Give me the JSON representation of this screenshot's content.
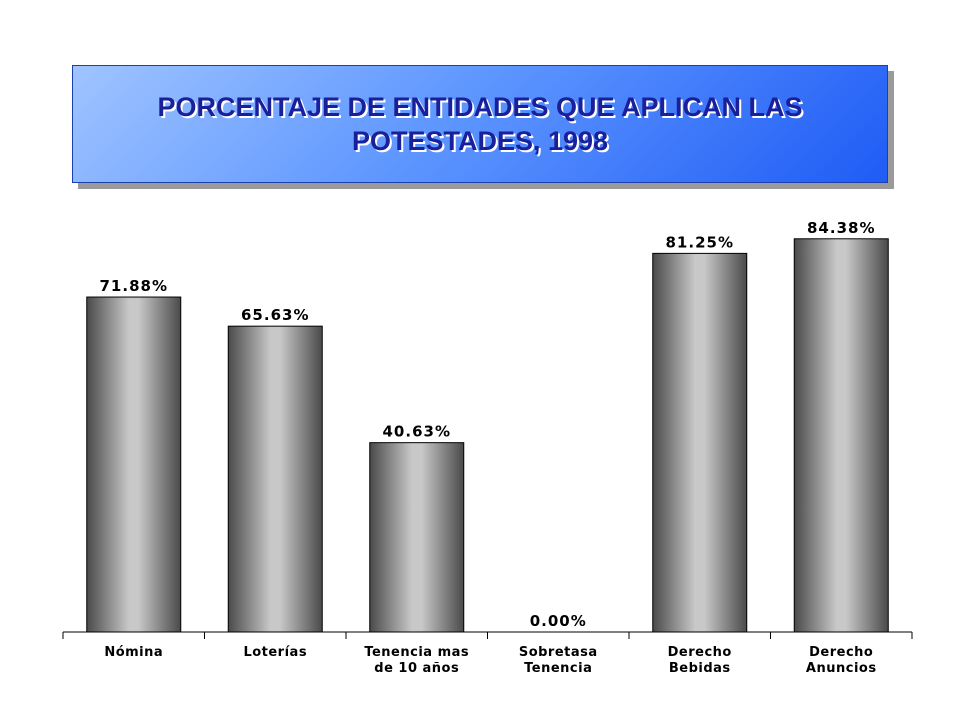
{
  "chart_data": {
    "type": "bar",
    "title": "PORCENTAJE DE ENTIDADES QUE APLICAN LAS POTESTADES, 1998",
    "categories": [
      "Nómina",
      "Loterías",
      "Tenencia mas\nde 10 años",
      "Sobretasa\nTenencia",
      "Derecho\nBebidas",
      "Derecho\nAnuncios"
    ],
    "values": [
      71.88,
      65.63,
      40.63,
      0.0,
      81.25,
      84.38
    ],
    "value_labels": [
      "71.88%",
      "65.63%",
      "40.63%",
      "0.00%",
      "81.25%",
      "84.38%"
    ],
    "color": "#a0a0a0"
  }
}
